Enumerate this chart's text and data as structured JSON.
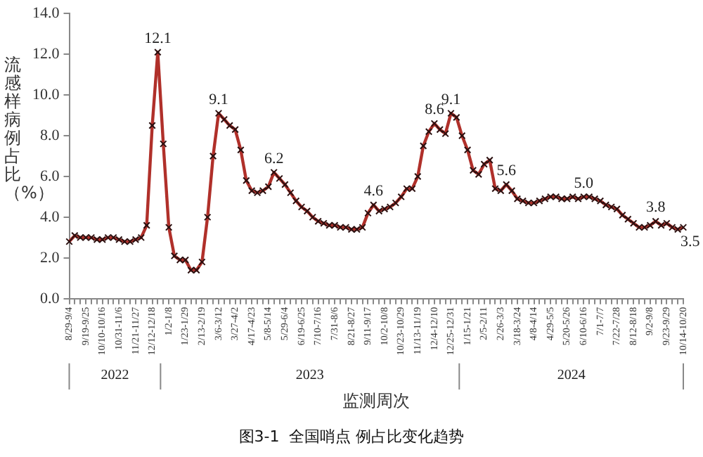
{
  "chart_data": {
    "type": "line",
    "ylabel": "流感样病例占比（%）",
    "xlabel": "监测周次",
    "categories": [
      "8/29-9/4",
      null,
      null,
      "9/19-9/25",
      null,
      null,
      "10/10-10/16",
      null,
      null,
      "10/31-11/6",
      null,
      null,
      "11/21-11/27",
      null,
      null,
      "12/12-12/18",
      null,
      null,
      "1/2-1/8",
      null,
      null,
      "1/23-1/29",
      null,
      null,
      "2/13-2/19",
      null,
      null,
      "3/6-3/12",
      null,
      null,
      "3/27-4/2",
      null,
      null,
      "4/17-4/23",
      null,
      null,
      "5/8-5/14",
      null,
      null,
      "5/29-6/4",
      null,
      null,
      "6/19-6/25",
      null,
      null,
      "7/10-7/16",
      null,
      null,
      "7/31-8/6",
      null,
      null,
      "8/21-8/27",
      null,
      null,
      "9/11-9/17",
      null,
      null,
      "10/2-10/8",
      null,
      null,
      "10/23-10/29",
      null,
      null,
      "11/13-11/19",
      null,
      null,
      "12/4-12/10",
      null,
      null,
      "12/25-12/31",
      null,
      null,
      "1/15-1/21",
      null,
      null,
      "2/5-2/11",
      null,
      null,
      "2/26-3/3",
      null,
      null,
      "3/18-3/24",
      null,
      null,
      "4/8-4/14",
      null,
      null,
      "4/29-5/5",
      null,
      null,
      "5/20-5/26",
      null,
      null,
      "6/10-6/16",
      null,
      null,
      "7/1-7/7",
      null,
      null,
      "7/22-7/28",
      null,
      null,
      "8/12-8/18",
      null,
      null,
      "9/2-9/8",
      null,
      null,
      "9/23-9/29",
      null,
      null,
      "10/14-10/20"
    ],
    "series": [
      {
        "color": "#b0302a",
        "values": [
          2.8,
          3.1,
          3.0,
          3.0,
          3.0,
          2.9,
          2.9,
          3.0,
          3.0,
          2.9,
          2.8,
          2.8,
          2.9,
          3.0,
          3.6,
          8.5,
          12.1,
          7.6,
          3.5,
          2.1,
          1.9,
          1.9,
          1.4,
          1.4,
          1.8,
          4.0,
          7.0,
          9.1,
          8.8,
          8.5,
          8.3,
          7.3,
          5.8,
          5.3,
          5.2,
          5.3,
          5.5,
          6.2,
          5.9,
          5.6,
          5.2,
          4.8,
          4.5,
          4.3,
          4.0,
          3.8,
          3.7,
          3.6,
          3.6,
          3.5,
          3.5,
          3.4,
          3.4,
          3.5,
          4.2,
          4.6,
          4.3,
          4.4,
          4.5,
          4.7,
          5.0,
          5.4,
          5.4,
          6.0,
          7.5,
          8.2,
          8.6,
          8.3,
          8.1,
          9.1,
          8.9,
          8.0,
          7.3,
          6.3,
          6.1,
          6.6,
          6.8,
          5.4,
          5.3,
          5.6,
          5.3,
          4.9,
          4.8,
          4.7,
          4.7,
          4.8,
          4.9,
          5.0,
          5.0,
          4.9,
          4.9,
          5.0,
          4.9,
          5.0,
          5.0,
          4.9,
          4.8,
          4.6,
          4.5,
          4.4,
          4.1,
          3.9,
          3.7,
          3.5,
          3.5,
          3.6,
          3.8,
          3.6,
          3.7,
          3.5,
          3.4,
          3.5
        ],
        "value_labels": [
          null,
          null,
          null,
          null,
          null,
          null,
          null,
          null,
          null,
          null,
          null,
          null,
          null,
          null,
          null,
          null,
          "12.1",
          null,
          null,
          null,
          null,
          null,
          null,
          null,
          null,
          null,
          null,
          "9.1",
          null,
          null,
          null,
          null,
          null,
          null,
          null,
          null,
          null,
          "6.2",
          null,
          null,
          null,
          null,
          null,
          null,
          null,
          null,
          null,
          null,
          null,
          null,
          null,
          null,
          null,
          null,
          null,
          "4.6",
          null,
          null,
          null,
          null,
          null,
          null,
          null,
          null,
          null,
          null,
          "8.6",
          null,
          null,
          "9.1",
          null,
          null,
          null,
          null,
          null,
          null,
          null,
          null,
          null,
          "5.6",
          null,
          null,
          null,
          null,
          null,
          null,
          null,
          null,
          null,
          null,
          null,
          null,
          null,
          "5.0",
          null,
          null,
          null,
          null,
          null,
          null,
          null,
          null,
          null,
          null,
          null,
          null,
          "3.8",
          null,
          null,
          null,
          null,
          "3.5"
        ]
      }
    ],
    "ylim": [
      0,
      14
    ],
    "yticks": [
      {
        "value": 0,
        "label": "0.0"
      },
      {
        "value": 2,
        "label": "2.0"
      },
      {
        "value": 4,
        "label": "4.0"
      },
      {
        "value": 6,
        "label": "6.0"
      },
      {
        "value": 8,
        "label": "8.0"
      },
      {
        "value": 10,
        "label": "10.0"
      },
      {
        "value": 12,
        "label": "12.0"
      },
      {
        "value": 14,
        "label": "14.0"
      }
    ],
    "grid": false,
    "legend": false,
    "marker": "cross",
    "line_style": "solid",
    "annotations": [
      "2022",
      "2023",
      "2024",
      "图3-1  全国哨点 例占比变化趋势"
    ]
  }
}
